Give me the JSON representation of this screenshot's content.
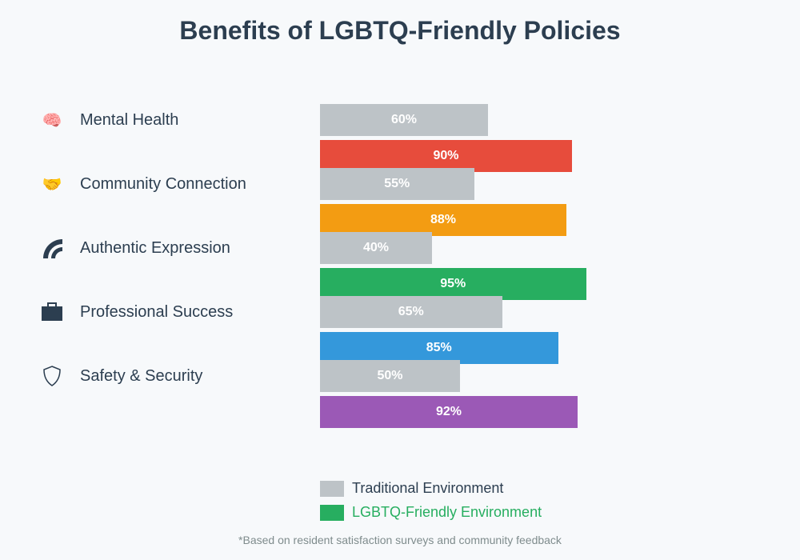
{
  "chart_data": {
    "type": "bar",
    "orientation": "horizontal",
    "title": "Benefits of LGBTQ-Friendly Policies",
    "categories": [
      "Mental Health",
      "Community Connection",
      "Authentic Expression",
      "Professional Success",
      "Safety & Security"
    ],
    "category_icons": [
      "brain-icon",
      "handshake-icon",
      "rainbow-icon",
      "briefcase-icon",
      "shield-icon"
    ],
    "series": [
      {
        "name": "Traditional Environment",
        "values": [
          60,
          55,
          40,
          65,
          50
        ],
        "color": "#bdc3c7"
      },
      {
        "name": "LGBTQ-Friendly Environment",
        "values": [
          90,
          88,
          95,
          85,
          92
        ],
        "colors": [
          "#e74c3c",
          "#f39c12",
          "#27ae60",
          "#3498db",
          "#9b59b6"
        ],
        "legend_color": "#27ae60"
      }
    ],
    "value_suffix": "%",
    "xlim": [
      0,
      100
    ],
    "legend_placement": "bottom"
  },
  "footnote": "*Based on resident satisfaction surveys and community feedback"
}
